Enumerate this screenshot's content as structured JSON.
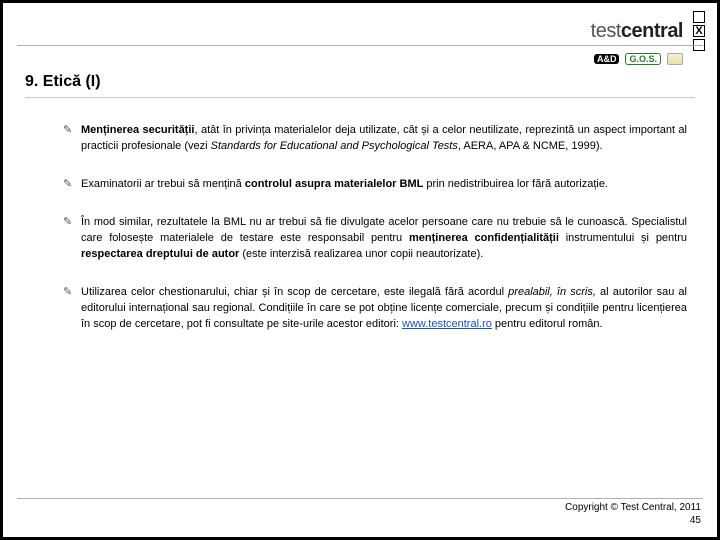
{
  "header": {
    "logo_prefix": "test",
    "logo_suffix": "central",
    "checkbox_marks": [
      "",
      "X",
      ""
    ],
    "sub_logos": {
      "ad": "A&D",
      "gos": "G.O.S."
    }
  },
  "title": "9. Etică (I)",
  "bullets": [
    {
      "segments": [
        {
          "t": "Menținerea securității",
          "b": true
        },
        {
          "t": ", atât în privința materialelor deja utilizate, cât și a celor neutilizate, reprezintă un aspect important al practicii profesionale (vezi "
        },
        {
          "t": "Standards for Educational and Psychological Tests",
          "i": true
        },
        {
          "t": ", AERA, APA & NCME, 1999)."
        }
      ]
    },
    {
      "segments": [
        {
          "t": "Examinatorii ar trebui să mențină "
        },
        {
          "t": "controlul asupra materialelor BML",
          "b": true
        },
        {
          "t": " prin nedistribuirea lor fără autorizație."
        }
      ]
    },
    {
      "segments": [
        {
          "t": "În mod similar, rezultatele la BML nu ar trebui să fie divulgate acelor persoane care nu trebuie să le cunoască. Specialistul care folosește materialele de testare este responsabil pentru "
        },
        {
          "t": "menținerea confidențialității",
          "b": true
        },
        {
          "t": " instrumentului și pentru "
        },
        {
          "t": "respectarea dreptului de autor",
          "b": true
        },
        {
          "t": " (este interzisă realizarea unor copii neautorizate)."
        }
      ]
    },
    {
      "segments": [
        {
          "t": "Utilizarea celor chestionarului, chiar și în scop de cercetare, este ilegală fără acordul "
        },
        {
          "t": "prealabil, în scris,",
          "i": true
        },
        {
          "t": " al autorilor sau al editorului internațional sau regional. Condițiile în care se pot obține licențe comerciale, precum și condițiile pentru licențierea în scop de cercetare, pot fi consultate pe site-urile acestor editori: "
        },
        {
          "t": "www.testcentral.ro",
          "link": true
        },
        {
          "t": " pentru editorul român."
        }
      ]
    }
  ],
  "footer": {
    "copyright": "Copyright © Test Central, 2011",
    "page_number": "45"
  }
}
